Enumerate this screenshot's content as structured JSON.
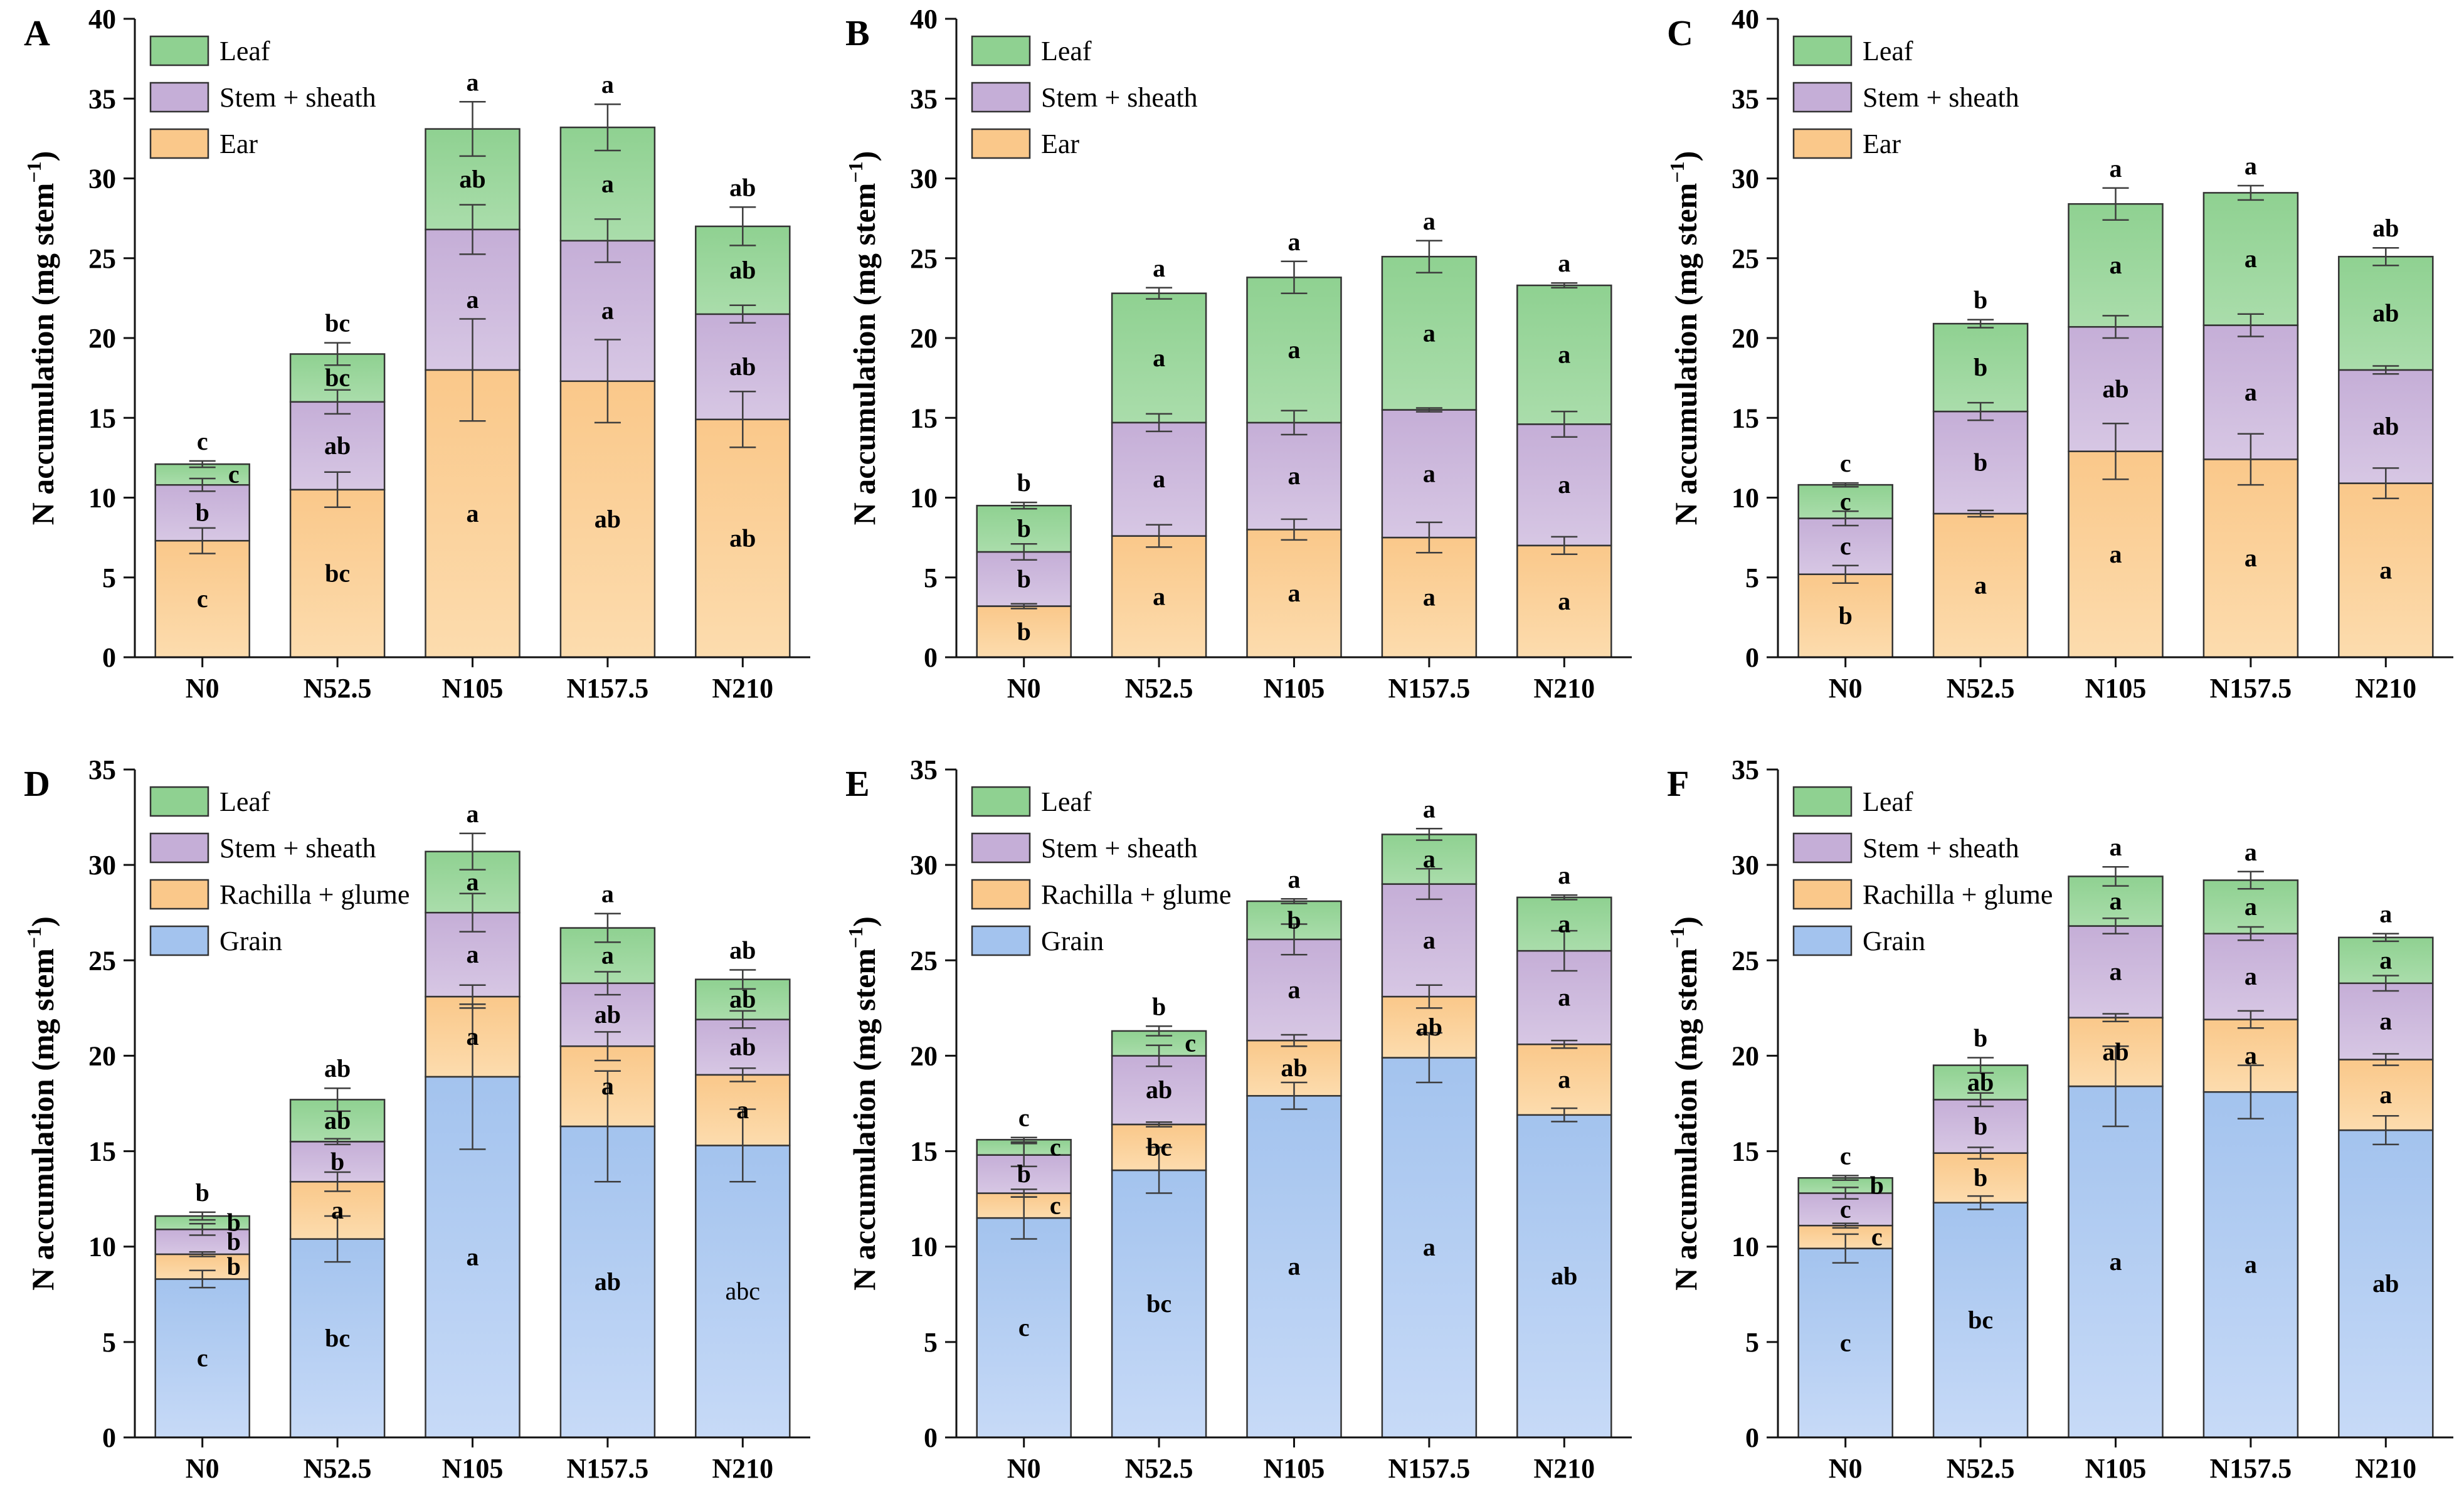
{
  "figure": {
    "description_visible_text_only": true,
    "ylabel": {
      "prefix": "N accumulation (mg stem",
      "sup": "−1",
      "suffix": ")"
    }
  },
  "style": {
    "series_colors": {
      "Leaf": {
        "base": "#8fd191",
        "light": "#aaddab"
      },
      "Stem + sheath": {
        "base": "#c5aed7",
        "light": "#d7c7e4"
      },
      "Ear": {
        "base": "#fac88a",
        "light": "#fcdcae"
      },
      "Rachilla + glume": {
        "base": "#fac88a",
        "light": "#fcdcae"
      },
      "Grain": {
        "base": "#a3c3ee",
        "light": "#c7daf7"
      }
    },
    "bar_border_color": "#333333",
    "axis_color": "#111111",
    "error_bar_color": "#3d3d3d",
    "text_color": "#000000"
  },
  "chart_data": [
    {
      "panel": "A",
      "type": "bar",
      "stacked": true,
      "ylim": [
        0,
        40
      ],
      "yticks": [
        0,
        5,
        10,
        15,
        20,
        25,
        30,
        35,
        40
      ],
      "categories": [
        "N0",
        "N52.5",
        "N105",
        "N157.5",
        "N210"
      ],
      "legend": [
        "Leaf",
        "Stem + sheath",
        "Ear"
      ],
      "stack_order": [
        "Ear",
        "Stem + sheath",
        "Leaf"
      ],
      "bars": [
        {
          "category": "N0",
          "cumulative_tops": [
            7.3,
            10.8,
            12.1
          ],
          "errors": [
            0.8,
            0.4,
            0.2
          ],
          "segment_letters": [
            "c",
            "b",
            "c"
          ],
          "total_letter": "c"
        },
        {
          "category": "N52.5",
          "cumulative_tops": [
            10.5,
            16.0,
            19.0
          ],
          "errors": [
            1.1,
            0.75,
            0.7
          ],
          "segment_letters": [
            "bc",
            "ab",
            "bc"
          ],
          "total_letter": "bc"
        },
        {
          "category": "N105",
          "cumulative_tops": [
            18.0,
            26.8,
            33.1
          ],
          "errors": [
            3.2,
            1.55,
            1.7
          ],
          "segment_letters": [
            "a",
            "a",
            "ab"
          ],
          "total_letter": "a"
        },
        {
          "category": "N157.5",
          "cumulative_tops": [
            17.3,
            26.1,
            33.2
          ],
          "errors": [
            2.6,
            1.35,
            1.45
          ],
          "segment_letters": [
            "ab",
            "a",
            "a"
          ],
          "total_letter": "a"
        },
        {
          "category": "N210",
          "cumulative_tops": [
            14.9,
            21.5,
            27.0
          ],
          "errors": [
            1.75,
            0.55,
            1.2
          ],
          "segment_letters": [
            "ab",
            "ab",
            "ab"
          ],
          "total_letter": "ab"
        }
      ]
    },
    {
      "panel": "B",
      "type": "bar",
      "stacked": true,
      "ylim": [
        0,
        40
      ],
      "yticks": [
        0,
        5,
        10,
        15,
        20,
        25,
        30,
        35,
        40
      ],
      "categories": [
        "N0",
        "N52.5",
        "N105",
        "N157.5",
        "N210"
      ],
      "legend": [
        "Leaf",
        "Stem + sheath",
        "Ear"
      ],
      "stack_order": [
        "Ear",
        "Stem + sheath",
        "Leaf"
      ],
      "bars": [
        {
          "category": "N0",
          "cumulative_tops": [
            3.2,
            6.6,
            9.5
          ],
          "errors": [
            0.15,
            0.5,
            0.2
          ],
          "segment_letters": [
            "b",
            "b",
            "b"
          ],
          "total_letter": "b"
        },
        {
          "category": "N52.5",
          "cumulative_tops": [
            7.6,
            14.7,
            22.8
          ],
          "errors": [
            0.7,
            0.55,
            0.35
          ],
          "segment_letters": [
            "a",
            "a",
            "a"
          ],
          "total_letter": "a"
        },
        {
          "category": "N105",
          "cumulative_tops": [
            8.0,
            14.7,
            23.8
          ],
          "errors": [
            0.65,
            0.75,
            1.0
          ],
          "segment_letters": [
            "a",
            "a",
            "a"
          ],
          "total_letter": "a"
        },
        {
          "category": "N157.5",
          "cumulative_tops": [
            7.5,
            15.5,
            25.1
          ],
          "errors": [
            0.95,
            0.12,
            1.0
          ],
          "segment_letters": [
            "a",
            "a",
            "a"
          ],
          "total_letter": "a"
        },
        {
          "category": "N210",
          "cumulative_tops": [
            7.0,
            14.6,
            23.3
          ],
          "errors": [
            0.55,
            0.8,
            0.15
          ],
          "segment_letters": [
            "a",
            "a",
            "a"
          ],
          "total_letter": "a"
        }
      ]
    },
    {
      "panel": "C",
      "type": "bar",
      "stacked": true,
      "ylim": [
        0,
        40
      ],
      "yticks": [
        0,
        5,
        10,
        15,
        20,
        25,
        30,
        35,
        40
      ],
      "categories": [
        "N0",
        "N52.5",
        "N105",
        "N157.5",
        "N210"
      ],
      "legend": [
        "Leaf",
        "Stem + sheath",
        "Ear"
      ],
      "stack_order": [
        "Ear",
        "Stem + sheath",
        "Leaf"
      ],
      "bars": [
        {
          "category": "N0",
          "cumulative_tops": [
            5.2,
            8.7,
            10.8
          ],
          "errors": [
            0.55,
            0.45,
            0.12
          ],
          "segment_letters": [
            "b",
            "c",
            "c"
          ],
          "total_letter": "c"
        },
        {
          "category": "N52.5",
          "cumulative_tops": [
            9.0,
            15.4,
            20.9
          ],
          "errors": [
            0.2,
            0.55,
            0.25
          ],
          "segment_letters": [
            "a",
            "b",
            "b"
          ],
          "total_letter": "b"
        },
        {
          "category": "N105",
          "cumulative_tops": [
            12.9,
            20.7,
            28.4
          ],
          "errors": [
            1.75,
            0.7,
            1.0
          ],
          "segment_letters": [
            "a",
            "ab",
            "a"
          ],
          "total_letter": "a"
        },
        {
          "category": "N157.5",
          "cumulative_tops": [
            12.4,
            20.8,
            29.1
          ],
          "errors": [
            1.6,
            0.7,
            0.45
          ],
          "segment_letters": [
            "a",
            "a",
            "a"
          ],
          "total_letter": "a"
        },
        {
          "category": "N210",
          "cumulative_tops": [
            10.9,
            18.0,
            25.1
          ],
          "errors": [
            0.95,
            0.25,
            0.55
          ],
          "segment_letters": [
            "a",
            "ab",
            "ab"
          ],
          "total_letter": "ab"
        }
      ]
    },
    {
      "panel": "D",
      "type": "bar",
      "stacked": true,
      "ylim": [
        0,
        35
      ],
      "yticks": [
        0,
        5,
        10,
        15,
        20,
        25,
        30,
        35
      ],
      "categories": [
        "N0",
        "N52.5",
        "N105",
        "N157.5",
        "N210"
      ],
      "legend": [
        "Leaf",
        "Stem + sheath",
        "Rachilla + glume",
        "Grain"
      ],
      "stack_order": [
        "Grain",
        "Rachilla + glume",
        "Stem + sheath",
        "Leaf"
      ],
      "bars": [
        {
          "category": "N0",
          "cumulative_tops": [
            8.3,
            9.6,
            10.9,
            11.6
          ],
          "errors": [
            0.45,
            0.12,
            0.3,
            0.2
          ],
          "segment_letters": [
            "c",
            "b",
            "b",
            "b"
          ],
          "total_letter": "b"
        },
        {
          "category": "N52.5",
          "cumulative_tops": [
            10.4,
            13.4,
            15.5,
            17.7
          ],
          "errors": [
            1.2,
            0.5,
            0.15,
            0.6
          ],
          "segment_letters": [
            "bc",
            "a",
            "b",
            "ab"
          ],
          "total_letter": "ab"
        },
        {
          "category": "N105",
          "cumulative_tops": [
            18.9,
            23.1,
            27.5,
            30.7
          ],
          "errors": [
            3.8,
            0.6,
            1.0,
            0.95
          ],
          "segment_letters": [
            "a",
            "a",
            "a",
            "a"
          ],
          "total_letter": "a"
        },
        {
          "category": "N157.5",
          "cumulative_tops": [
            16.3,
            20.5,
            23.8,
            26.7
          ],
          "errors": [
            2.9,
            0.75,
            0.6,
            0.75
          ],
          "segment_letters": [
            "ab",
            "a",
            "ab",
            "a"
          ],
          "total_letter": "a"
        },
        {
          "category": "N210",
          "cumulative_tops": [
            15.3,
            19.0,
            21.9,
            24.0
          ],
          "errors": [
            1.9,
            0.35,
            0.45,
            0.5
          ],
          "segment_letters": [
            "abc",
            "a",
            "ab",
            "ab"
          ],
          "total_letter": "ab",
          "regular_letter_indices": [
            0
          ]
        }
      ]
    },
    {
      "panel": "E",
      "type": "bar",
      "stacked": true,
      "ylim": [
        0,
        35
      ],
      "yticks": [
        0,
        5,
        10,
        15,
        20,
        25,
        30,
        35
      ],
      "categories": [
        "N0",
        "N52.5",
        "N105",
        "N157.5",
        "N210"
      ],
      "legend": [
        "Leaf",
        "Stem + sheath",
        "Rachilla + glume",
        "Grain"
      ],
      "stack_order": [
        "Grain",
        "Rachilla + glume",
        "Stem + sheath",
        "Leaf"
      ],
      "bars": [
        {
          "category": "N0",
          "cumulative_tops": [
            11.5,
            12.8,
            14.8,
            15.6
          ],
          "errors": [
            1.1,
            0.2,
            0.6,
            0.12
          ],
          "segment_letters": [
            "c",
            "c",
            "b",
            "c"
          ],
          "total_letter": "c"
        },
        {
          "category": "N52.5",
          "cumulative_tops": [
            14.0,
            16.4,
            20.0,
            21.3
          ],
          "errors": [
            1.2,
            0.12,
            0.55,
            0.25
          ],
          "segment_letters": [
            "bc",
            "bc",
            "ab",
            "c"
          ],
          "total_letter": "b"
        },
        {
          "category": "N105",
          "cumulative_tops": [
            17.9,
            20.8,
            26.1,
            28.1
          ],
          "errors": [
            0.7,
            0.3,
            0.8,
            0.12
          ],
          "segment_letters": [
            "a",
            "ab",
            "a",
            "b"
          ],
          "total_letter": "a"
        },
        {
          "category": "N157.5",
          "cumulative_tops": [
            19.9,
            23.1,
            29.0,
            31.6
          ],
          "errors": [
            1.3,
            0.6,
            0.8,
            0.3
          ],
          "segment_letters": [
            "a",
            "ab",
            "a",
            "a"
          ],
          "total_letter": "a"
        },
        {
          "category": "N210",
          "cumulative_tops": [
            16.9,
            20.6,
            25.5,
            28.3
          ],
          "errors": [
            0.35,
            0.2,
            1.05,
            0.12
          ],
          "segment_letters": [
            "ab",
            "a",
            "a",
            "a"
          ],
          "total_letter": "a"
        }
      ]
    },
    {
      "panel": "F",
      "type": "bar",
      "stacked": true,
      "ylim": [
        0,
        35
      ],
      "yticks": [
        0,
        5,
        10,
        15,
        20,
        25,
        30,
        35
      ],
      "categories": [
        "N0",
        "N52.5",
        "N105",
        "N157.5",
        "N210"
      ],
      "legend": [
        "Leaf",
        "Stem + sheath",
        "Rachilla + glume",
        "Grain"
      ],
      "stack_order": [
        "Grain",
        "Rachilla + glume",
        "Stem + sheath",
        "Leaf"
      ],
      "bars": [
        {
          "category": "N0",
          "cumulative_tops": [
            9.9,
            11.1,
            12.8,
            13.6
          ],
          "errors": [
            0.75,
            0.12,
            0.3,
            0.12
          ],
          "segment_letters": [
            "c",
            "c",
            "c",
            "b"
          ],
          "total_letter": "c"
        },
        {
          "category": "N52.5",
          "cumulative_tops": [
            12.3,
            14.9,
            17.7,
            19.5
          ],
          "errors": [
            0.35,
            0.3,
            0.35,
            0.4
          ],
          "segment_letters": [
            "bc",
            "b",
            "b",
            "ab"
          ],
          "total_letter": "b"
        },
        {
          "category": "N105",
          "cumulative_tops": [
            18.4,
            22.0,
            26.8,
            29.4
          ],
          "errors": [
            2.1,
            0.2,
            0.4,
            0.5
          ],
          "segment_letters": [
            "a",
            "ab",
            "a",
            "a"
          ],
          "total_letter": "a"
        },
        {
          "category": "N157.5",
          "cumulative_tops": [
            18.1,
            21.9,
            26.4,
            29.2
          ],
          "errors": [
            1.4,
            0.45,
            0.35,
            0.45
          ],
          "segment_letters": [
            "a",
            "a",
            "a",
            "a"
          ],
          "total_letter": "a"
        },
        {
          "category": "N210",
          "cumulative_tops": [
            16.1,
            19.8,
            23.8,
            26.2
          ],
          "errors": [
            0.75,
            0.3,
            0.4,
            0.2
          ],
          "segment_letters": [
            "ab",
            "a",
            "a",
            "a"
          ],
          "total_letter": "a"
        }
      ]
    }
  ]
}
